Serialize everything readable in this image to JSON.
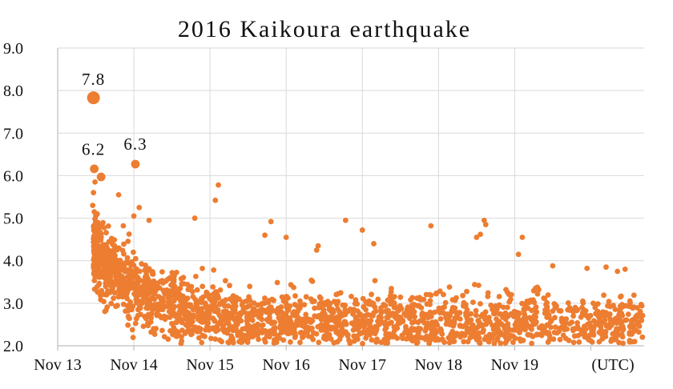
{
  "chart_data": {
    "type": "scatter",
    "title": "2016 Kaikoura earthquake",
    "xlabel": "",
    "ylabel": "",
    "x_unit_label": "(UTC)",
    "x_ticks": [
      "Nov 13",
      "Nov 14",
      "Nov 15",
      "Nov 16",
      "Nov 17",
      "Nov 18",
      "Nov 19"
    ],
    "xlim": [
      0,
      7.7
    ],
    "ylim": [
      2.0,
      9.0
    ],
    "y_ticks": [
      "2.0",
      "3.0",
      "4.0",
      "5.0",
      "6.0",
      "7.0",
      "8.0",
      "9.0"
    ],
    "grid": true,
    "color": "#ed7d31",
    "annotations": [
      {
        "label": "7.8",
        "x": 0.47,
        "y": 7.8
      },
      {
        "label": "6.2",
        "x": 0.47,
        "y": 6.15
      },
      {
        "label": "6.3",
        "x": 1.02,
        "y": 6.27
      }
    ],
    "highlight_points": [
      {
        "x": 0.47,
        "y": 7.83,
        "size": "large"
      },
      {
        "x": 0.48,
        "y": 6.16,
        "size": "medium"
      },
      {
        "x": 0.57,
        "y": 5.97,
        "size": "medium"
      },
      {
        "x": 1.02,
        "y": 6.27,
        "size": "medium"
      }
    ],
    "notable_points": [
      {
        "x": 0.46,
        "y": 5.3
      },
      {
        "x": 0.48,
        "y": 5.15
      },
      {
        "x": 0.5,
        "y": 5.05
      },
      {
        "x": 0.49,
        "y": 4.98
      },
      {
        "x": 0.52,
        "y": 5.1
      },
      {
        "x": 0.47,
        "y": 5.6
      },
      {
        "x": 0.49,
        "y": 5.85
      },
      {
        "x": 0.8,
        "y": 5.55
      },
      {
        "x": 1.07,
        "y": 5.25
      },
      {
        "x": 1.2,
        "y": 4.95
      },
      {
        "x": 1.0,
        "y": 5.05
      },
      {
        "x": 1.8,
        "y": 5.0
      },
      {
        "x": 2.11,
        "y": 5.78
      },
      {
        "x": 2.07,
        "y": 5.42
      },
      {
        "x": 2.8,
        "y": 4.92
      },
      {
        "x": 2.72,
        "y": 4.6
      },
      {
        "x": 3.0,
        "y": 4.55
      },
      {
        "x": 3.42,
        "y": 4.35
      },
      {
        "x": 3.4,
        "y": 4.25
      },
      {
        "x": 3.78,
        "y": 4.95
      },
      {
        "x": 4.0,
        "y": 4.72
      },
      {
        "x": 4.15,
        "y": 4.4
      },
      {
        "x": 4.9,
        "y": 4.82
      },
      {
        "x": 5.6,
        "y": 4.95
      },
      {
        "x": 5.62,
        "y": 4.85
      },
      {
        "x": 5.55,
        "y": 4.62
      },
      {
        "x": 5.5,
        "y": 4.55
      },
      {
        "x": 6.1,
        "y": 4.55
      },
      {
        "x": 6.05,
        "y": 4.15
      },
      {
        "x": 6.5,
        "y": 3.88
      },
      {
        "x": 6.95,
        "y": 3.82
      },
      {
        "x": 7.2,
        "y": 3.85
      },
      {
        "x": 7.35,
        "y": 3.75
      },
      {
        "x": 7.45,
        "y": 3.8
      }
    ],
    "cloud": {
      "description_free_params": true,
      "point_count": 2200,
      "start_x": 0.47,
      "end_x": 7.68,
      "median_start": 4.4,
      "median_end": 2.55,
      "decay_rate": 1.6,
      "spread": 0.38,
      "floor": 2.05
    }
  }
}
